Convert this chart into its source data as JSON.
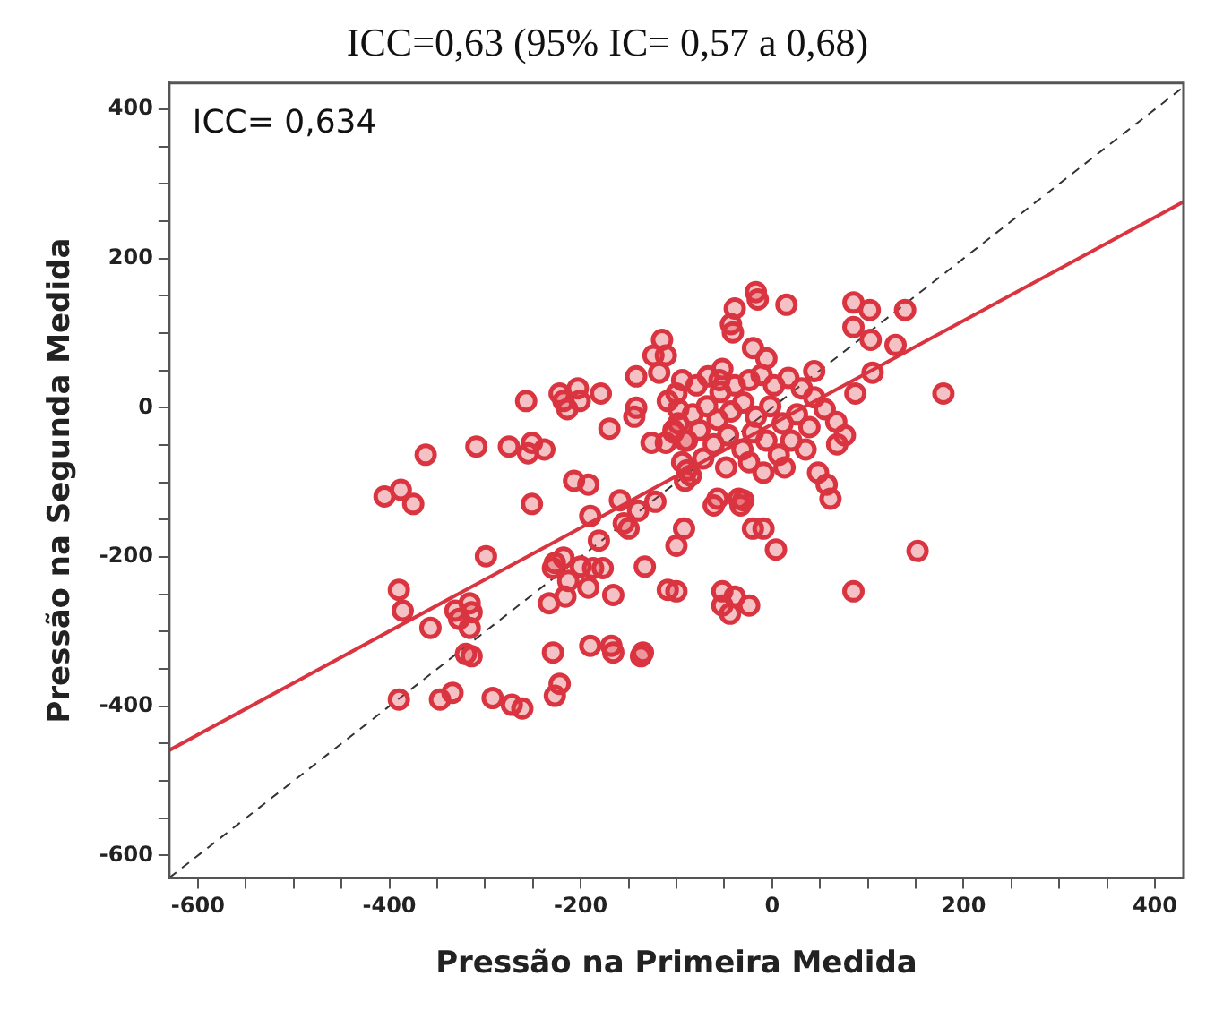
{
  "chart_data": {
    "type": "scatter",
    "title": "ICC=0,63 (95% IC= 0,57 a 0,68)",
    "xlabel": "Pressão na Primeira Medida",
    "ylabel": "Pressão na Segunda Medida",
    "annotations": [
      "ICC= 0,634"
    ],
    "xlim": [
      -630,
      430
    ],
    "ylim": [
      -630,
      435
    ],
    "xticks": [
      -600,
      {
        "value": -550,
        "label": null
      },
      {
        "value": -500,
        "label": null
      },
      {
        "value": -450,
        "label": null
      },
      -400,
      {
        "value": -350,
        "label": null
      },
      {
        "value": -300,
        "label": null
      },
      {
        "value": -250,
        "label": null
      },
      -200,
      {
        "value": -150,
        "label": null
      },
      {
        "value": -100,
        "label": null
      },
      {
        "value": -50,
        "label": null
      },
      0,
      {
        "value": 50,
        "label": null
      },
      {
        "value": 100,
        "label": null
      },
      {
        "value": 150,
        "label": null
      },
      200,
      {
        "value": 250,
        "label": null
      },
      {
        "value": 300,
        "label": null
      },
      {
        "value": 350,
        "label": null
      },
      400
    ],
    "yticks": [
      -600,
      {
        "value": -550,
        "label": null
      },
      {
        "value": -500,
        "label": null
      },
      {
        "value": -450,
        "label": null
      },
      -400,
      {
        "value": -350,
        "label": null
      },
      {
        "value": -300,
        "label": null
      },
      {
        "value": -250,
        "label": null
      },
      -200,
      {
        "value": -150,
        "label": null
      },
      {
        "value": -100,
        "label": null
      },
      {
        "value": -50,
        "label": null
      },
      0,
      {
        "value": 50,
        "label": null
      },
      {
        "value": 100,
        "label": null
      },
      {
        "value": 150,
        "label": null
      },
      200,
      {
        "value": 250,
        "label": null
      },
      {
        "value": 300,
        "label": null
      },
      {
        "value": 350,
        "label": null
      },
      400
    ],
    "grid": false,
    "legend": false,
    "marker": "circle",
    "series": [
      {
        "color": "#d9343f",
        "x": [
          -362,
          -405,
          -388,
          -375,
          -390,
          -386,
          -390,
          -357,
          -331,
          -327,
          -316,
          -314,
          -316,
          -320,
          -314,
          -299,
          -309,
          -275,
          -251,
          -255,
          -238,
          -292,
          -272,
          -261,
          -347,
          -334,
          -257,
          -222,
          -203,
          -218,
          -201,
          -179,
          -214,
          -142,
          -144,
          -109,
          -100,
          -170,
          -126,
          -111,
          -91,
          -103,
          -98,
          -115,
          -124,
          -111,
          -118,
          -142,
          -251,
          -207,
          -192,
          -89,
          -190,
          -181,
          -159,
          -155,
          -150,
          -140,
          -122,
          -92,
          -100,
          -227,
          -218,
          -229,
          -200,
          -187,
          -177,
          -213,
          -192,
          -216,
          -233,
          -133,
          -166,
          -109,
          -100,
          -229,
          -190,
          -168,
          -166,
          -137,
          -135,
          -222,
          -227,
          -17,
          -15,
          15,
          -39,
          85,
          102,
          139,
          -43,
          -41,
          85,
          103,
          129,
          -20,
          -6,
          44,
          105,
          -52,
          -55,
          179,
          87,
          55,
          67,
          76,
          68,
          48,
          57,
          61,
          -57,
          -35,
          -33,
          -91,
          -85,
          -61,
          -30,
          -20,
          -9,
          4,
          152,
          -52,
          -39,
          -52,
          -44,
          -24,
          85,
          -94,
          -79,
          -67,
          -54,
          -39,
          -24,
          -11,
          2,
          17,
          31,
          44,
          -98,
          -83,
          -68,
          -57,
          -43,
          -30,
          -17,
          -2,
          11,
          26,
          39,
          -103,
          -89,
          -76,
          -61,
          -46,
          -31,
          -20,
          -6,
          7,
          20,
          35,
          -94,
          -72,
          -48,
          -24,
          -9,
          13
        ],
        "values": [
          -63,
          -119,
          -110,
          -129,
          -244,
          -272,
          -391,
          -295,
          -272,
          -283,
          -262,
          -274,
          -295,
          -330,
          -333,
          -199,
          -52,
          -52,
          -47,
          -61,
          -56,
          -389,
          -398,
          -403,
          -391,
          -382,
          9,
          19,
          26,
          9,
          9,
          19,
          -2,
          0,
          -12,
          9,
          19,
          -28,
          -47,
          -47,
          -44,
          -30,
          -21,
          91,
          70,
          70,
          47,
          42,
          -129,
          -98,
          -103,
          -84,
          -145,
          -178,
          -124,
          -155,
          -162,
          -138,
          -126,
          -162,
          -185,
          -208,
          -201,
          -215,
          -213,
          -215,
          -215,
          -232,
          -241,
          -253,
          -262,
          -213,
          -251,
          -244,
          -246,
          -328,
          -319,
          -319,
          -328,
          -333,
          -328,
          -370,
          -386,
          155,
          145,
          138,
          133,
          141,
          131,
          131,
          112,
          101,
          108,
          91,
          84,
          80,
          66,
          49,
          47,
          52,
          37,
          19,
          19,
          -2,
          -19,
          -37,
          -49,
          -87,
          -103,
          -122,
          -122,
          -122,
          -131,
          -98,
          -91,
          -131,
          -124,
          -162,
          -162,
          -190,
          -192,
          -246,
          -253,
          -265,
          -276,
          -265,
          -246,
          37,
          30,
          42,
          21,
          30,
          37,
          44,
          30,
          40,
          26,
          14,
          -2,
          -9,
          2,
          -16,
          -5,
          7,
          -12,
          2,
          -21,
          -9,
          -26,
          -33,
          -44,
          -30,
          -49,
          -37,
          -56,
          -33,
          -44,
          -63,
          -44,
          -56,
          -73,
          -68,
          -80,
          -73,
          -87,
          -80
        ]
      },
      {
        "type": "line",
        "color": "#d9343f",
        "line_style": "solid",
        "marker": "none",
        "x": [
          -630,
          430
        ],
        "values": [
          -459,
          276
        ]
      },
      {
        "type": "line",
        "color": "#333333",
        "line_style": "dashed",
        "marker": "none",
        "x": [
          -630,
          430
        ],
        "values": [
          -630,
          430
        ]
      }
    ]
  }
}
